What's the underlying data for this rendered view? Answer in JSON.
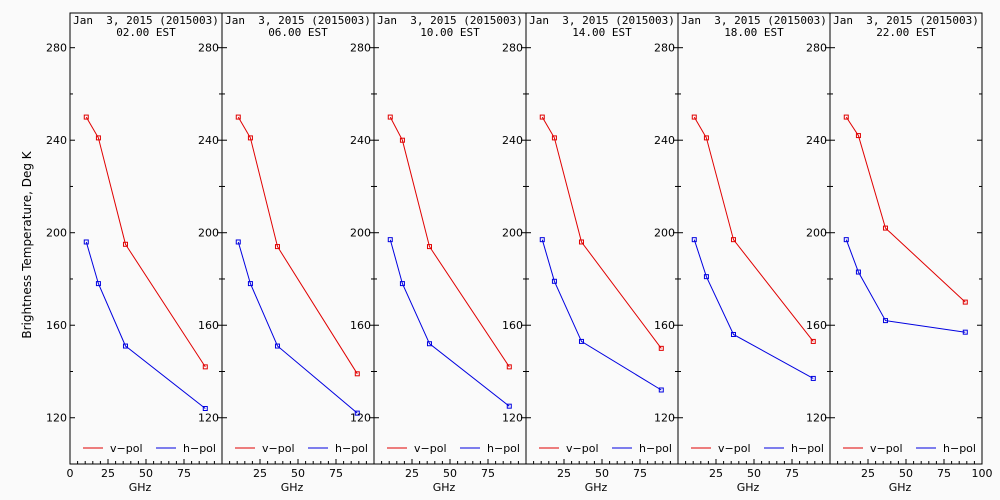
{
  "figure": {
    "ylabel": "Brightness Temperature, Deg K",
    "colors": {
      "v_pol": "#e00000",
      "h_pol": "#0000e0",
      "axis": "#000000",
      "background": "#fafafa"
    }
  },
  "chart_data": [
    {
      "type": "line",
      "title": "Jan  3, 2015 (2015003)",
      "subtitle": "02.00 EST",
      "xlabel": "GHz",
      "xlim": [
        0,
        100
      ],
      "ylim": [
        100,
        295
      ],
      "xticks": [
        "0",
        "25",
        "50",
        "75"
      ],
      "yticks": [
        "120",
        "160",
        "200",
        "240",
        "280"
      ],
      "legend": [
        "v−pol",
        "h−pol"
      ],
      "series": [
        {
          "name": "v-pol",
          "x": [
            10.7,
            18.7,
            36.5,
            89.0
          ],
          "values": [
            250,
            241,
            195,
            142
          ]
        },
        {
          "name": "h-pol",
          "x": [
            10.7,
            18.7,
            36.5,
            89.0
          ],
          "values": [
            196,
            178,
            151,
            124
          ]
        }
      ]
    },
    {
      "type": "line",
      "title": "Jan  3, 2015 (2015003)",
      "subtitle": "06.00 EST",
      "xlabel": "GHz",
      "xlim": [
        0,
        100
      ],
      "ylim": [
        100,
        295
      ],
      "xticks": [
        "25",
        "50",
        "75"
      ],
      "yticks": [
        "120",
        "160",
        "200",
        "240",
        "280"
      ],
      "legend": [
        "v−pol",
        "h−pol"
      ],
      "series": [
        {
          "name": "v-pol",
          "x": [
            10.7,
            18.7,
            36.5,
            89.0
          ],
          "values": [
            250,
            241,
            194,
            139
          ]
        },
        {
          "name": "h-pol",
          "x": [
            10.7,
            18.7,
            36.5,
            89.0
          ],
          "values": [
            196,
            178,
            151,
            122
          ]
        }
      ]
    },
    {
      "type": "line",
      "title": "Jan  3, 2015 (2015003)",
      "subtitle": "10.00 EST",
      "xlabel": "GHz",
      "xlim": [
        0,
        100
      ],
      "ylim": [
        100,
        295
      ],
      "xticks": [
        "25",
        "50",
        "75"
      ],
      "yticks": [
        "120",
        "160",
        "200",
        "240",
        "280"
      ],
      "legend": [
        "v−pol",
        "h−pol"
      ],
      "series": [
        {
          "name": "v-pol",
          "x": [
            10.7,
            18.7,
            36.5,
            89.0
          ],
          "values": [
            250,
            240,
            194,
            142
          ]
        },
        {
          "name": "h-pol",
          "x": [
            10.7,
            18.7,
            36.5,
            89.0
          ],
          "values": [
            197,
            178,
            152,
            125
          ]
        }
      ]
    },
    {
      "type": "line",
      "title": "Jan  3, 2015 (2015003)",
      "subtitle": "14.00 EST",
      "xlabel": "GHz",
      "xlim": [
        0,
        100
      ],
      "ylim": [
        100,
        295
      ],
      "xticks": [
        "25",
        "50",
        "75"
      ],
      "yticks": [
        "120",
        "160",
        "200",
        "240",
        "280"
      ],
      "legend": [
        "v−pol",
        "h−pol"
      ],
      "series": [
        {
          "name": "v-pol",
          "x": [
            10.7,
            18.7,
            36.5,
            89.0
          ],
          "values": [
            250,
            241,
            196,
            150
          ]
        },
        {
          "name": "h-pol",
          "x": [
            10.7,
            18.7,
            36.5,
            89.0
          ],
          "values": [
            197,
            179,
            153,
            132
          ]
        }
      ]
    },
    {
      "type": "line",
      "title": "Jan  3, 2015 (2015003)",
      "subtitle": "18.00 EST",
      "xlabel": "GHz",
      "xlim": [
        0,
        100
      ],
      "ylim": [
        100,
        295
      ],
      "xticks": [
        "25",
        "50",
        "75"
      ],
      "yticks": [
        "120",
        "160",
        "200",
        "240",
        "280"
      ],
      "legend": [
        "v−pol",
        "h−pol"
      ],
      "series": [
        {
          "name": "v-pol",
          "x": [
            10.7,
            18.7,
            36.5,
            89.0
          ],
          "values": [
            250,
            241,
            197,
            153
          ]
        },
        {
          "name": "h-pol",
          "x": [
            10.7,
            18.7,
            36.5,
            89.0
          ],
          "values": [
            197,
            181,
            156,
            137
          ]
        }
      ]
    },
    {
      "type": "line",
      "title": "Jan  3, 2015 (2015003)",
      "subtitle": "22.00 EST",
      "xlabel": "GHz",
      "xlim": [
        0,
        100
      ],
      "ylim": [
        100,
        295
      ],
      "xticks": [
        "25",
        "50",
        "75",
        "100"
      ],
      "yticks": [
        "120",
        "160",
        "200",
        "240",
        "280"
      ],
      "legend": [
        "v−pol",
        "h−pol"
      ],
      "series": [
        {
          "name": "v-pol",
          "x": [
            10.7,
            18.7,
            36.5,
            89.0
          ],
          "values": [
            250,
            242,
            202,
            170
          ]
        },
        {
          "name": "h-pol",
          "x": [
            10.7,
            18.7,
            36.5,
            89.0
          ],
          "values": [
            197,
            183,
            162,
            157
          ]
        }
      ]
    }
  ]
}
